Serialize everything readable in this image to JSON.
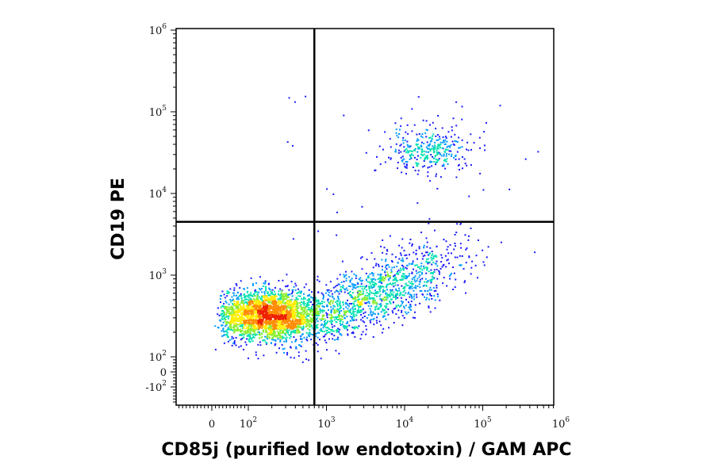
{
  "chart_data": {
    "type": "scatter",
    "subtype": "flow-cytometry-density-dot-plot",
    "xlabel": "CD85j (purified low endotoxin) / GAM APC",
    "ylabel": "CD19 PE",
    "x_scale": "biexponential",
    "y_scale": "biexponential",
    "xlim": [
      -100,
      1000000
    ],
    "ylim": [
      -200,
      1000000
    ],
    "x_ticks": [
      {
        "value": 0,
        "base": "0",
        "exp": ""
      },
      {
        "value": 100,
        "base": "10",
        "exp": "2"
      },
      {
        "value": 1000,
        "base": "10",
        "exp": "3"
      },
      {
        "value": 10000,
        "base": "10",
        "exp": "4"
      },
      {
        "value": 100000,
        "base": "10",
        "exp": "5"
      },
      {
        "value": 1000000,
        "base": "10",
        "exp": "6"
      }
    ],
    "y_ticks": [
      {
        "value": -100,
        "base": "-10",
        "exp": "2"
      },
      {
        "value": 0,
        "base": "0",
        "exp": ""
      },
      {
        "value": 100,
        "base": "10",
        "exp": "2"
      },
      {
        "value": 1000,
        "base": "10",
        "exp": "3"
      },
      {
        "value": 10000,
        "base": "10",
        "exp": "4"
      },
      {
        "value": 100000,
        "base": "10",
        "exp": "5"
      },
      {
        "value": 1000000,
        "base": "10",
        "exp": "6"
      }
    ],
    "quadrant_gate": {
      "x": 700,
      "y": 4500
    },
    "density_colormap": [
      "#1a1aff",
      "#0099ff",
      "#00e0b0",
      "#8aee30",
      "#ffee00",
      "#ff8c00",
      "#ee2200"
    ],
    "populations": [
      {
        "center_x": 180,
        "center_y": 330,
        "spread_x_log": 0.34,
        "spread_y_log": 0.15,
        "count": 2600
      },
      {
        "center_x": 4000,
        "center_y": 600,
        "spread_x_log": 0.55,
        "spread_y_log": 0.2,
        "count": 1300
      },
      {
        "center_x": 20000,
        "center_y": 35000,
        "spread_x_log": 0.28,
        "spread_y_log": 0.14,
        "count": 330
      }
    ],
    "grid": false,
    "legend": "none"
  }
}
